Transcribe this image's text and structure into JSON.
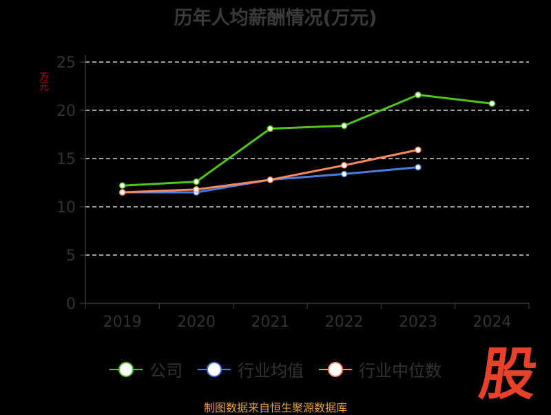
{
  "chart_data": {
    "type": "line",
    "title": "历年人均薪酬情况(万元)",
    "ylabel": "万元",
    "xlabel": "",
    "categories": [
      "2019",
      "2020",
      "2021",
      "2022",
      "2023",
      "2024"
    ],
    "ylim": [
      0,
      25
    ],
    "yticks": [
      0,
      5,
      10,
      15,
      20,
      25
    ],
    "grid": true,
    "legend_position": "bottom",
    "series": [
      {
        "name": "公司",
        "color": "#52c41a",
        "values": [
          12.2,
          12.6,
          18.1,
          18.4,
          21.6,
          20.7
        ]
      },
      {
        "name": "行业均值",
        "color": "#4a7fe0",
        "values": [
          11.5,
          11.5,
          12.8,
          13.4,
          14.1,
          null
        ]
      },
      {
        "name": "行业中位数",
        "color": "#ff8a5b",
        "values": [
          11.5,
          11.8,
          12.8,
          14.3,
          15.9,
          null
        ]
      }
    ]
  },
  "footer": {
    "source": "制图数据来自恒生聚源数据库",
    "logo_text": "股"
  }
}
